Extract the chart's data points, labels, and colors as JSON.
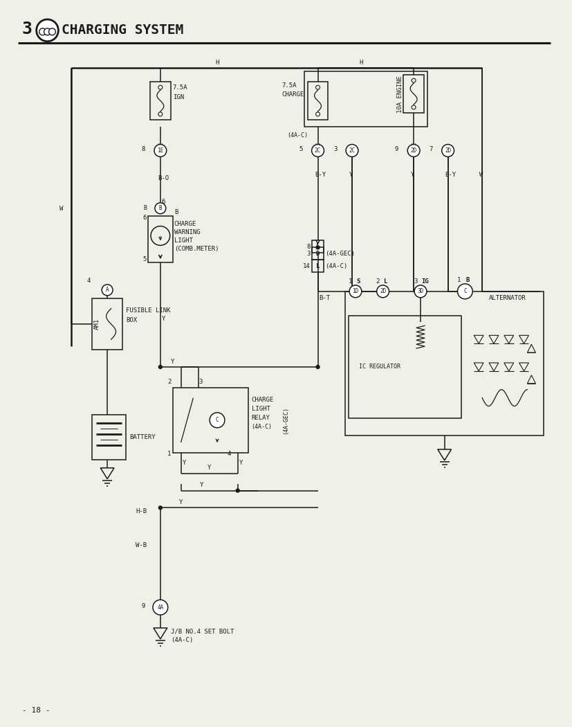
{
  "bg_color": "#f0efe8",
  "line_color": "#1a1a1a",
  "page_number": "- 18 -",
  "title": "3",
  "title_text": "CHARGING SYSTEM",
  "body_fontsize": 6.5,
  "title_fontsize": 15
}
